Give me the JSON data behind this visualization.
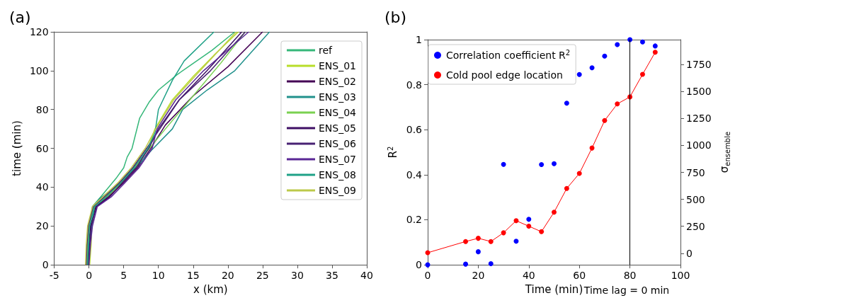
{
  "chart_data": [
    {
      "type": "line",
      "title": "(a)",
      "xlabel": "x (km)",
      "ylabel": "time (min)",
      "xlim": [
        -5,
        40
      ],
      "xticks": [
        -5,
        0,
        5,
        10,
        15,
        20,
        25,
        30,
        35,
        40
      ],
      "ylim": [
        0,
        120
      ],
      "yticks": [
        0,
        20,
        40,
        60,
        80,
        100,
        120
      ],
      "grid": false,
      "legend": "top right",
      "marker": "none",
      "series": [
        {
          "name": "ref",
          "color": "#35b779",
          "x": [
            -0.3,
            -0.2,
            0.5,
            1.7,
            4,
            5,
            5.5,
            6.2,
            7.3,
            8.7,
            10,
            12.7,
            14.7,
            17.7,
            21
          ],
          "values": [
            0,
            15,
            30,
            35,
            45,
            50,
            55.5,
            60,
            75.6,
            84,
            90,
            98,
            103,
            110.5,
            120
          ]
        },
        {
          "name": "ENS_01",
          "color": "#b8de29",
          "x": [
            0.1,
            0.3,
            0.4,
            0.9,
            2.6,
            4.6,
            6.6,
            8.5,
            9.5,
            12,
            15,
            18,
            21.5
          ],
          "values": [
            0,
            10,
            20,
            30,
            35,
            42,
            50,
            60,
            70,
            85,
            97,
            108,
            120
          ]
        },
        {
          "name": "ENS_02",
          "color": "#440154",
          "x": [
            -0.1,
            0,
            0.2,
            1.0,
            2.8,
            4.9,
            7,
            8.9,
            11,
            15,
            20,
            25
          ],
          "values": [
            0,
            10,
            20,
            30,
            35,
            42,
            50,
            60,
            72,
            87,
            102,
            120
          ]
        },
        {
          "name": "ENS_03",
          "color": "#21918c",
          "x": [
            -0.2,
            0,
            0.8,
            1.5,
            3.8,
            5,
            7,
            9,
            12,
            13.5,
            17,
            21,
            26
          ],
          "values": [
            0,
            10,
            30,
            34,
            40,
            44,
            51,
            59,
            70,
            80,
            90,
            100,
            120
          ]
        },
        {
          "name": "ENS_04",
          "color": "#7ad151",
          "x": [
            -0.3,
            -0.2,
            0.0,
            0.7,
            2.3,
            4.4,
            6.4,
            8.7,
            11,
            15,
            19,
            22.5
          ],
          "values": [
            0,
            10,
            20,
            30,
            35,
            42,
            50,
            60,
            70,
            87,
            104,
            120
          ]
        },
        {
          "name": "ENS_05",
          "color": "#3e0f65",
          "x": [
            -0.1,
            0.1,
            0.3,
            1.1,
            3.0,
            4.7,
            6.8,
            8.6,
            10,
            13,
            17,
            22
          ],
          "values": [
            0,
            10,
            20,
            30,
            35,
            42,
            50,
            60,
            70,
            85,
            100,
            120
          ]
        },
        {
          "name": "ENS_06",
          "color": "#482173",
          "x": [
            -0.4,
            -0.3,
            -0.1,
            0.6,
            2.2,
            4.3,
            6.3,
            8.3,
            10.2,
            13,
            17.5,
            22.5
          ],
          "values": [
            0,
            10,
            20,
            30,
            35,
            42,
            50,
            60,
            70,
            85,
            100,
            120
          ]
        },
        {
          "name": "ENS_07",
          "color": "#5a2795",
          "x": [
            0,
            0.2,
            0.5,
            1.2,
            3.2,
            5.1,
            7.2,
            9.1,
            9.8,
            12.5,
            16.5,
            23
          ],
          "values": [
            0,
            10,
            20,
            30,
            35,
            42,
            50,
            60,
            70,
            85,
            100,
            120
          ]
        },
        {
          "name": "ENS_08",
          "color": "#1fa187",
          "x": [
            -0.2,
            -0.1,
            0.1,
            0.8,
            2.5,
            4.5,
            6.5,
            8.5,
            9.5,
            10,
            12,
            13.7,
            18
          ],
          "values": [
            0,
            10,
            20,
            30,
            35,
            42,
            50,
            60,
            68,
            80,
            95,
            105,
            120
          ]
        },
        {
          "name": "ENS_09",
          "color": "#bcc94a",
          "x": [
            -0.5,
            -0.4,
            -0.2,
            0.5,
            2.0,
            4.1,
            6.1,
            8.1,
            9.6,
            12.2,
            15.5,
            21.2
          ],
          "values": [
            0,
            10,
            20,
            30,
            35,
            42,
            50,
            60,
            70,
            85,
            98,
            120
          ]
        }
      ]
    },
    {
      "type": "scatter",
      "title": "(b)",
      "xlabel": "Time (min)",
      "ylabel": "R$^{2}$",
      "y2label": "σ$_{ensemble}$",
      "x": [
        0,
        15,
        20,
        25,
        30,
        35,
        40,
        45,
        50,
        55,
        60,
        65,
        70,
        75,
        80,
        85,
        90
      ],
      "xlim": [
        0,
        100
      ],
      "xticks": [
        0,
        20,
        40,
        60,
        80,
        100
      ],
      "ylim": [
        0,
        1
      ],
      "yticks": [
        0,
        0.2,
        0.4,
        0.6,
        0.8,
        1
      ],
      "y2lim": [
        -107,
        1981
      ],
      "y2ticks": [
        0,
        250,
        500,
        750,
        1000,
        1250,
        1500,
        1750
      ],
      "grid": false,
      "legend": "top left",
      "marker": "circle",
      "ref_lines": [
        {
          "axis": "x",
          "value": 80,
          "color": "#000000"
        }
      ],
      "annotations": [
        "Time lag = 0 min"
      ],
      "series": [
        {
          "name": "Correlation coefficient R$^{2}$",
          "color": "#0000ff",
          "values": [
            0,
            0.003,
            0.058,
            0.005,
            0.446,
            0.105,
            0.202,
            0.445,
            0.449,
            0.718,
            0.845,
            0.875,
            0.927,
            0.978,
            1.0,
            0.99,
            0.972
          ]
        },
        {
          "name": "Cold pool edge location",
          "color": "#ff0000",
          "type": "line",
          "axis": "y2",
          "values": [
            5,
            109,
            139,
            109,
            190,
            302,
            251,
            200,
            381,
            601,
            740,
            976,
            1231,
            1385,
            1450,
            1659,
            1864
          ]
        }
      ]
    }
  ]
}
